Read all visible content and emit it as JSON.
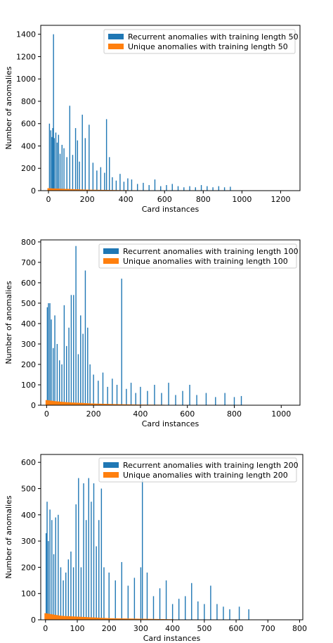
{
  "chart_data": [
    {
      "type": "bar",
      "xlabel": "Card instances",
      "ylabel": "Number of anomalies",
      "xlim": [
        -40,
        1300
      ],
      "ylim": [
        0,
        1480
      ],
      "xticks": [
        0,
        200,
        400,
        600,
        800,
        1000,
        1200
      ],
      "yticks": [
        0,
        200,
        400,
        600,
        800,
        1000,
        1200,
        1400
      ],
      "legend_position": "upper-right",
      "grid": false,
      "series": [
        {
          "name": "Recurrent anomalies with training length 50",
          "color": "#1f77b4",
          "x": [
            5,
            12,
            18,
            22,
            26,
            30,
            38,
            45,
            52,
            60,
            70,
            80,
            95,
            110,
            125,
            140,
            150,
            160,
            175,
            190,
            210,
            230,
            250,
            270,
            290,
            300,
            315,
            330,
            350,
            370,
            390,
            410,
            430,
            460,
            490,
            520,
            550,
            580,
            610,
            640,
            670,
            700,
            730,
            760,
            790,
            820,
            850,
            880,
            910,
            940
          ],
          "values": [
            600,
            540,
            480,
            560,
            1400,
            470,
            520,
            430,
            500,
            330,
            410,
            380,
            300,
            760,
            320,
            560,
            450,
            260,
            680,
            470,
            590,
            250,
            180,
            210,
            160,
            640,
            300,
            120,
            90,
            150,
            80,
            110,
            100,
            60,
            70,
            50,
            100,
            40,
            50,
            60,
            40,
            30,
            40,
            30,
            50,
            40,
            30,
            40,
            30,
            35
          ]
        },
        {
          "name": "Unique anomalies with training length 50",
          "color": "#ff7f0e",
          "x": [
            0,
            50,
            100,
            150,
            200,
            300,
            400,
            500,
            600
          ],
          "values": [
            22,
            18,
            15,
            12,
            9,
            6,
            4,
            3,
            2
          ]
        }
      ]
    },
    {
      "type": "bar",
      "xlabel": "Card instances",
      "ylabel": "Number of anomalies",
      "xlim": [
        -25,
        1080
      ],
      "ylim": [
        0,
        810
      ],
      "xticks": [
        0,
        200,
        400,
        600,
        800,
        1000
      ],
      "yticks": [
        0,
        100,
        200,
        300,
        400,
        500,
        600,
        700,
        800
      ],
      "legend_position": "upper-right",
      "grid": false,
      "series": [
        {
          "name": "Recurrent anomalies with training length 100",
          "color": "#1f77b4",
          "x": [
            3,
            8,
            14,
            20,
            28,
            35,
            45,
            55,
            65,
            75,
            85,
            95,
            105,
            115,
            125,
            135,
            145,
            155,
            165,
            175,
            185,
            200,
            220,
            240,
            260,
            280,
            300,
            320,
            340,
            360,
            380,
            400,
            430,
            460,
            490,
            520,
            550,
            580,
            610,
            640,
            680,
            720,
            760,
            800,
            830
          ],
          "values": [
            480,
            500,
            500,
            420,
            280,
            440,
            300,
            220,
            200,
            490,
            290,
            380,
            540,
            540,
            780,
            250,
            440,
            350,
            660,
            380,
            200,
            150,
            120,
            160,
            90,
            130,
            100,
            620,
            80,
            110,
            60,
            90,
            70,
            100,
            60,
            110,
            50,
            70,
            100,
            50,
            60,
            40,
            60,
            40,
            45
          ]
        },
        {
          "name": "Unique anomalies with training length 100",
          "color": "#ff7f0e",
          "x": [
            0,
            50,
            100,
            150,
            200,
            300,
            400,
            500
          ],
          "values": [
            25,
            18,
            14,
            11,
            8,
            5,
            3,
            2
          ]
        }
      ]
    },
    {
      "type": "bar",
      "xlabel": "Card instances",
      "ylabel": "Number of anomalies",
      "xlim": [
        -15,
        810
      ],
      "ylim": [
        0,
        630
      ],
      "xticks": [
        0,
        100,
        200,
        300,
        400,
        500,
        600,
        700,
        800
      ],
      "yticks": [
        0,
        100,
        200,
        300,
        400,
        500,
        600
      ],
      "legend_position": "upper-right",
      "grid": false,
      "series": [
        {
          "name": "Recurrent anomalies with training length 200",
          "color": "#1f77b4",
          "x": [
            2,
            5,
            9,
            14,
            20,
            26,
            32,
            40,
            48,
            56,
            64,
            72,
            80,
            88,
            96,
            104,
            112,
            120,
            128,
            136,
            144,
            152,
            160,
            168,
            176,
            184,
            200,
            220,
            240,
            260,
            280,
            300,
            305,
            320,
            340,
            360,
            380,
            400,
            420,
            440,
            460,
            480,
            500,
            520,
            540,
            560,
            580,
            610,
            640
          ],
          "values": [
            330,
            450,
            300,
            420,
            380,
            250,
            390,
            400,
            200,
            150,
            180,
            230,
            260,
            200,
            440,
            540,
            200,
            520,
            380,
            540,
            450,
            520,
            280,
            380,
            500,
            200,
            180,
            150,
            220,
            130,
            160,
            200,
            540,
            180,
            90,
            120,
            150,
            60,
            80,
            90,
            140,
            70,
            60,
            130,
            60,
            50,
            40,
            50,
            40
          ]
        },
        {
          "name": "Unique anomalies with training length 200",
          "color": "#ff7f0e",
          "x": [
            0,
            50,
            100,
            150,
            200,
            300,
            400
          ],
          "values": [
            25,
            15,
            12,
            9,
            6,
            4,
            2
          ]
        }
      ]
    }
  ]
}
